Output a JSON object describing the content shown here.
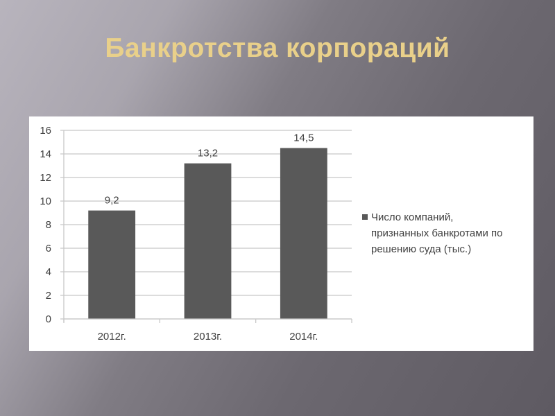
{
  "slide": {
    "title": "Банкротства корпораций"
  },
  "chart_data": {
    "type": "bar",
    "categories": [
      "2012г.",
      "2013г.",
      "2014г."
    ],
    "series": [
      {
        "name": "Число компаний, признанных банкротами по решению суда (тыс.)",
        "values": [
          9.2,
          13.2,
          14.5
        ],
        "color": "#595959"
      }
    ],
    "data_labels": [
      "9,2",
      "13,2",
      "14,5"
    ],
    "yticks": [
      "0",
      "2",
      "4",
      "6",
      "8",
      "10",
      "12",
      "14",
      "16"
    ],
    "ylim": [
      0,
      16
    ],
    "grid": true,
    "legend": {
      "position": "right",
      "lines": [
        "Число компаний,",
        "признанных банкротами по",
        "решению суда (тыс.)"
      ]
    },
    "title": "",
    "xlabel": "",
    "ylabel": ""
  }
}
